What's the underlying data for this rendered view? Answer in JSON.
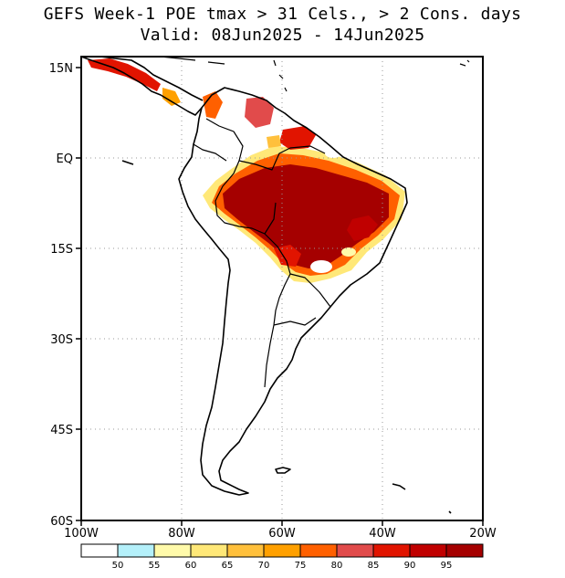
{
  "title": {
    "line1": "GEFS Week-1 POE tmax > 31 Cels., > 2 Cons. days",
    "line2": "Valid: 08Jun2025 - 14Jun2025"
  },
  "axes": {
    "lon_labels": [
      "100W",
      "80W",
      "60W",
      "40W",
      "20W"
    ],
    "lat_labels": [
      "15N",
      "EQ",
      "15S",
      "30S",
      "45S",
      "60S"
    ],
    "lon_range": [
      -100,
      -20
    ],
    "lat_range": [
      -60,
      15
    ],
    "grid": "dotted"
  },
  "colorbar": {
    "labels": [
      "50",
      "55",
      "60",
      "65",
      "70",
      "75",
      "80",
      "85",
      "90",
      "95"
    ],
    "colors": [
      "#ffffff",
      "#b4f0fa",
      "#fffaaa",
      "#ffe878",
      "#ffc03c",
      "#ffa000",
      "#ff6000",
      "#e14b4b",
      "#e11400",
      "#c00000",
      "#a50000"
    ]
  },
  "colors": {
    "coast": "#000000",
    "grid": "#999999"
  }
}
